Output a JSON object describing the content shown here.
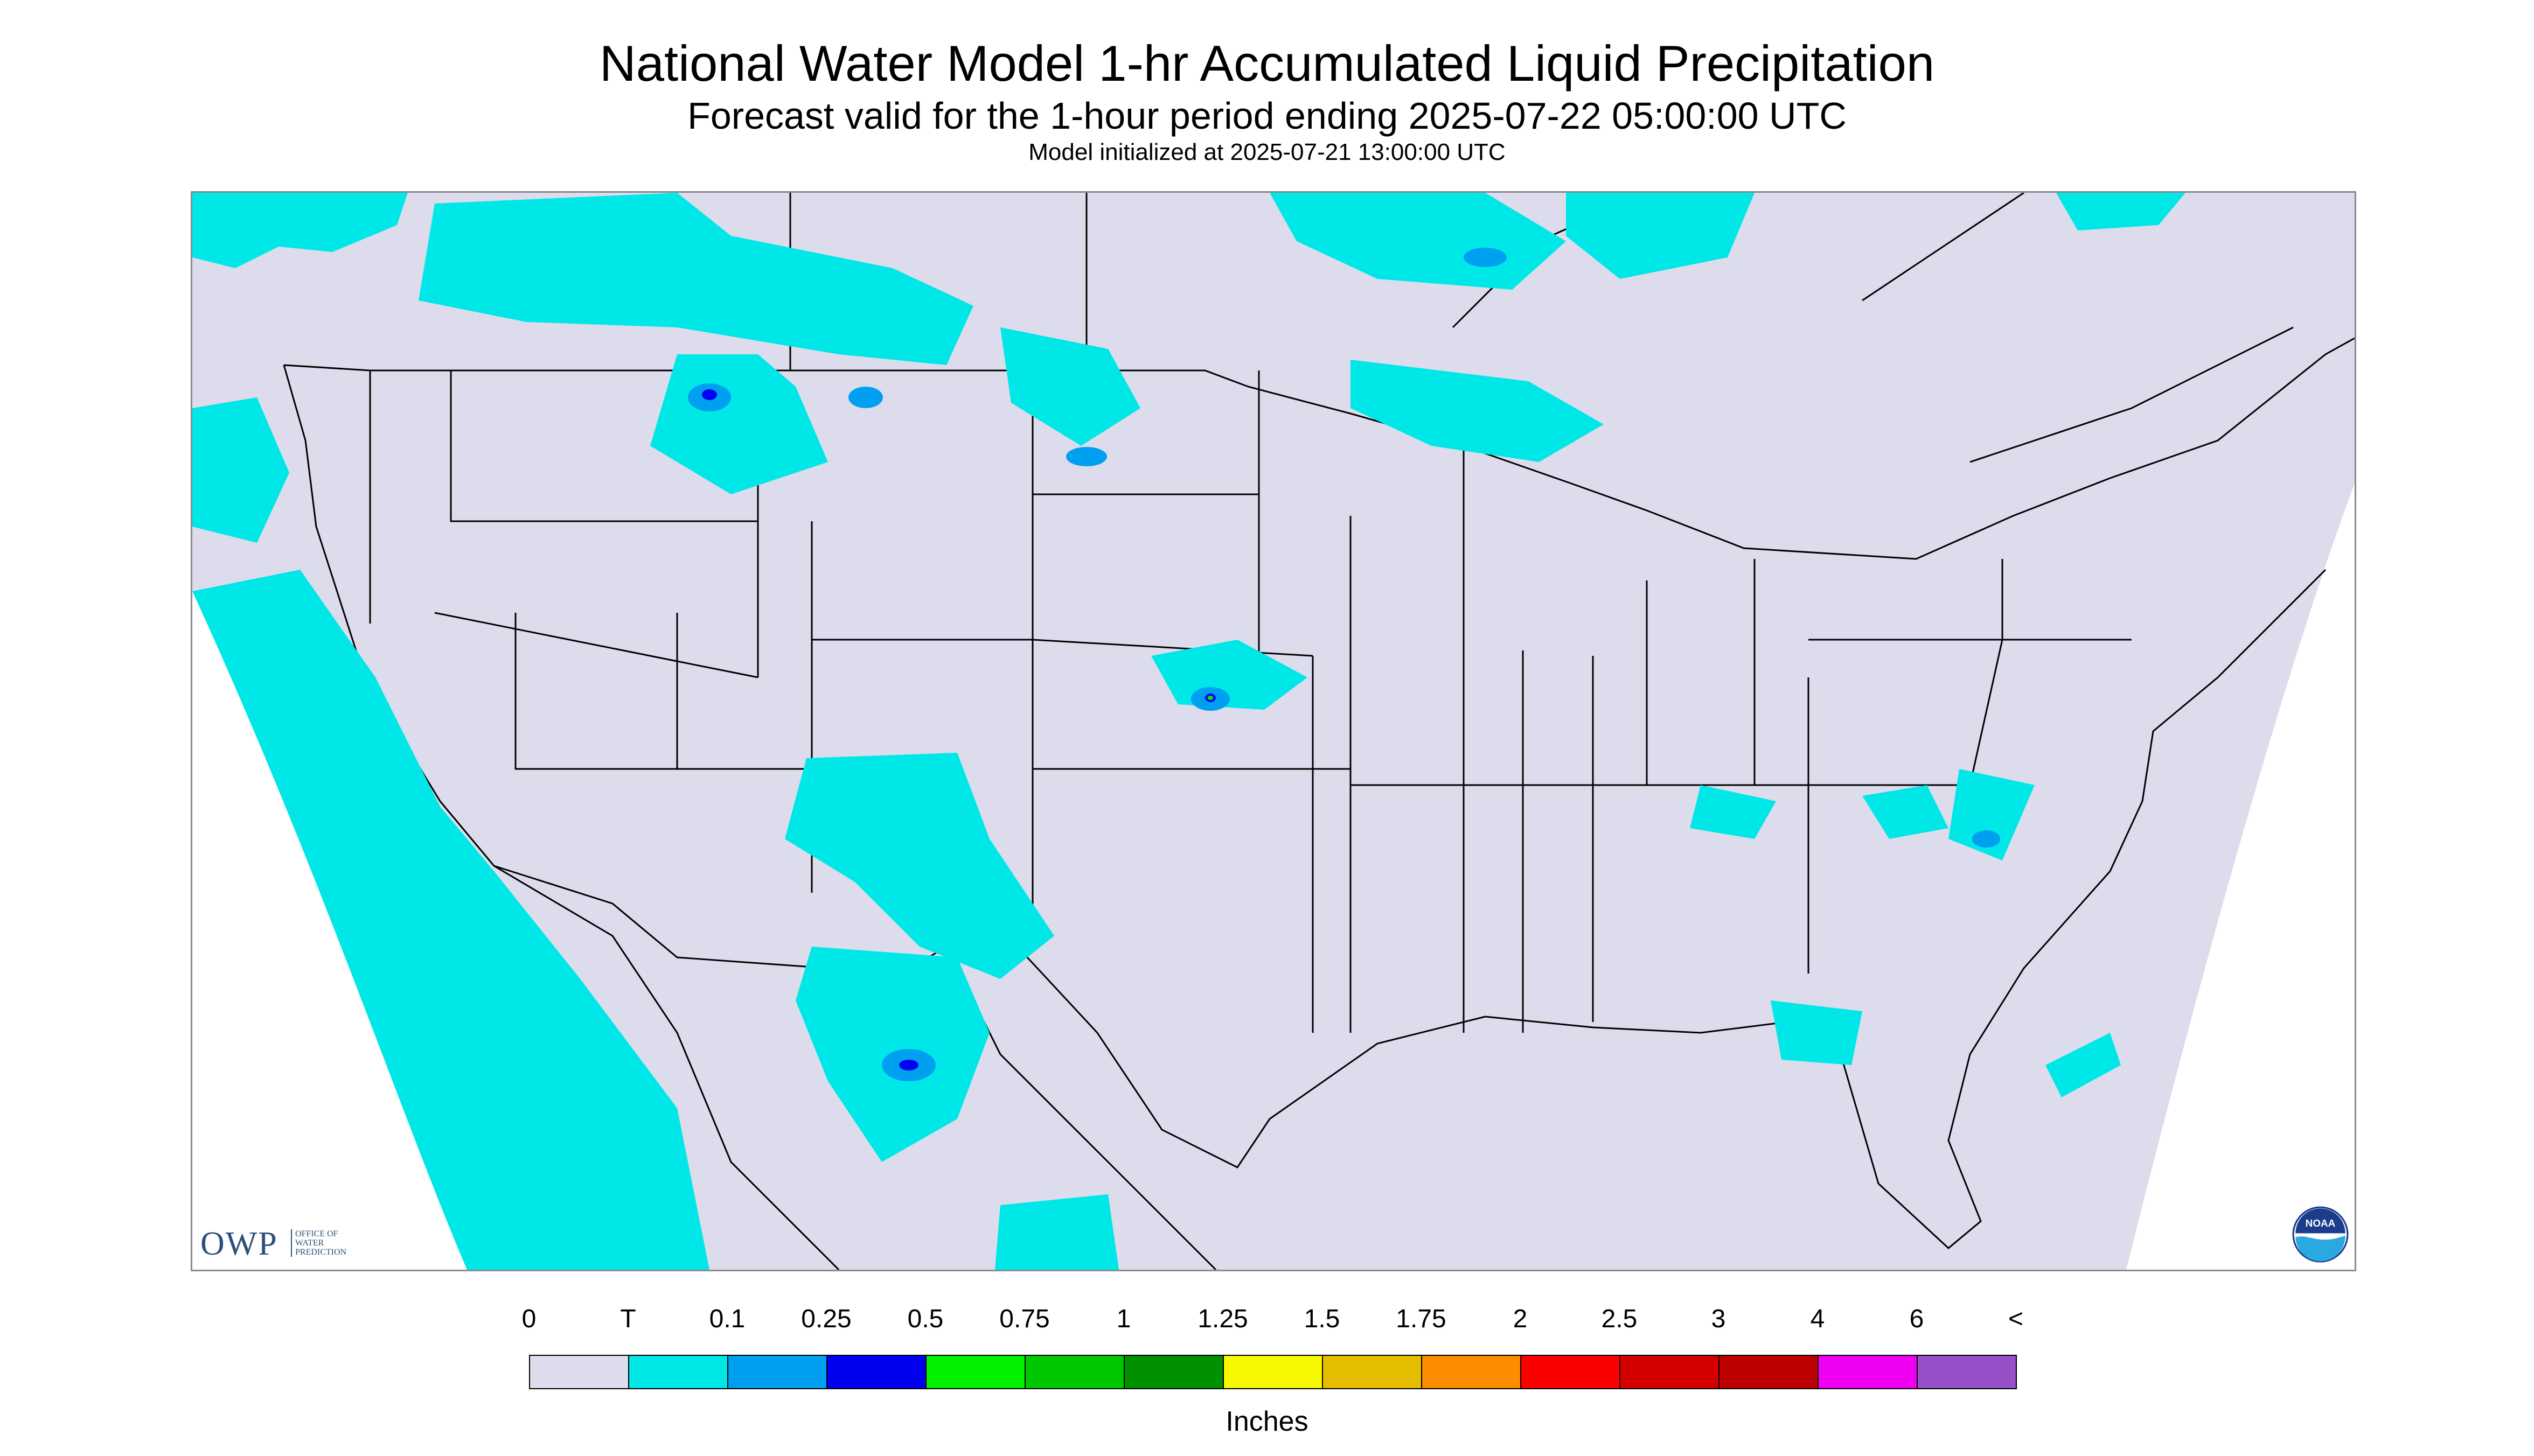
{
  "header": {
    "title": "National Water Model 1-hr Accumulated Liquid Precipitation",
    "subtitle": "Forecast valid for the 1-hour period ending 2025-07-22 05:00:00 UTC",
    "init": "Model initialized at 2025-07-21 13:00:00 UTC"
  },
  "logos": {
    "owp_text": "OWP",
    "owp_sub": [
      "OFFICE OF",
      "WATER",
      "PREDICTION"
    ],
    "noaa_text": "NOAA"
  },
  "legend": {
    "labels": [
      "0",
      "T",
      "0.1",
      "0.25",
      "0.5",
      "0.75",
      "1",
      "1.25",
      "1.5",
      "1.75",
      "2",
      "2.5",
      "3",
      "4",
      "6",
      "<"
    ],
    "colors": [
      "#dcdcec",
      "#00e7e7",
      "#00a0f0",
      "#0000f0",
      "#00f000",
      "#00c800",
      "#009000",
      "#f8f800",
      "#e4bc00",
      "#fc8c00",
      "#fc0000",
      "#d40000",
      "#bc0000",
      "#f000f0",
      "#9850c8"
    ],
    "units": "Inches"
  },
  "map": {
    "background_color": "#dcdcec",
    "outside_color": "#ffffff",
    "boundary_color": "#000000"
  }
}
